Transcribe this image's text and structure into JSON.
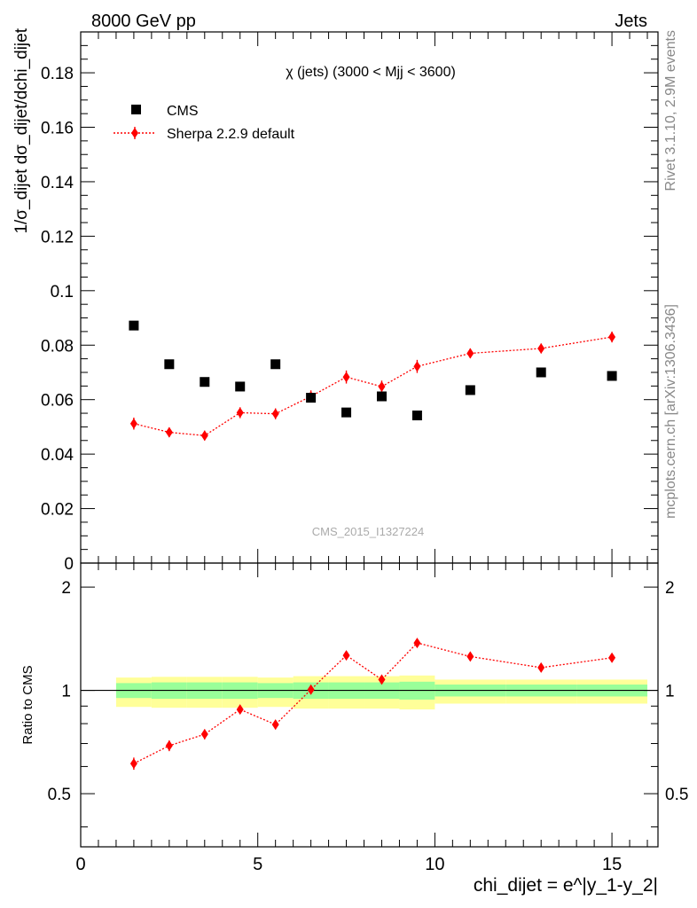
{
  "header": {
    "left": "8000 GeV pp",
    "right": "Jets"
  },
  "side_text": {
    "version": "Rivet 3.1.10,  2.9M events",
    "site": "mcplots.cern.ch [arXiv:1306.3436]"
  },
  "colors": {
    "data": "#000000",
    "mc": "#ff0000",
    "band_inner": "#99ff99",
    "band_outer": "#ffff99"
  },
  "chart_data": [
    {
      "type": "scatter",
      "title": "χ (jets) (3000 < Mjj < 3600)",
      "watermark": "CMS_2015_I1327224",
      "ylabel": "1/σ_dijet dσ_dijet/dchi_dijet",
      "xlim": [
        0,
        16.3
      ],
      "ylim": [
        0,
        0.195
      ],
      "yticks": [
        "0",
        "0.02",
        "0.04",
        "0.06",
        "0.08",
        "0.1",
        "0.12",
        "0.14",
        "0.16",
        "0.18"
      ],
      "legend_position": "top-left",
      "series": [
        {
          "name": "CMS",
          "marker": "square",
          "x": [
            1.5,
            2.5,
            3.5,
            4.5,
            5.5,
            6.5,
            7.5,
            8.5,
            9.5,
            11,
            13,
            15
          ],
          "y": [
            0.0872,
            0.073,
            0.0665,
            0.0648,
            0.073,
            0.0607,
            0.0553,
            0.0612,
            0.0542,
            0.0635,
            0.07,
            0.0687
          ]
        },
        {
          "name": "Sherpa 2.2.9 default",
          "marker": "diamond",
          "line": "dotted",
          "x": [
            1.5,
            2.5,
            3.5,
            4.5,
            5.5,
            6.5,
            7.5,
            8.5,
            9.5,
            11,
            13,
            15
          ],
          "y": [
            0.0512,
            0.048,
            0.0468,
            0.0552,
            0.0548,
            0.0612,
            0.0683,
            0.0648,
            0.0722,
            0.077,
            0.0788,
            0.083
          ],
          "yerr": [
            0.0022,
            0.0018,
            0.0018,
            0.002,
            0.002,
            0.0022,
            0.0024,
            0.0022,
            0.0024,
            0.0018,
            0.0018,
            0.002
          ]
        }
      ]
    },
    {
      "type": "scatter",
      "ylabel": "Ratio to CMS",
      "xlabel": "chi_dijet = e^|y_1-y_2|",
      "xlim": [
        0,
        16.3
      ],
      "ylim": [
        0.35,
        2.35
      ],
      "xticks": [
        "0",
        "5",
        "10",
        "15"
      ],
      "yticks": [
        "0.5",
        "1",
        "2"
      ],
      "reference_line": 1,
      "bands": [
        {
          "x": [
            1,
            2
          ],
          "inner": [
            0.95,
            1.05
          ],
          "outer": [
            0.895,
            1.09
          ]
        },
        {
          "x": [
            2,
            3
          ],
          "inner": [
            0.945,
            1.055
          ],
          "outer": [
            0.89,
            1.095
          ]
        },
        {
          "x": [
            3,
            4
          ],
          "inner": [
            0.945,
            1.055
          ],
          "outer": [
            0.89,
            1.095
          ]
        },
        {
          "x": [
            4,
            5
          ],
          "inner": [
            0.945,
            1.055
          ],
          "outer": [
            0.89,
            1.095
          ]
        },
        {
          "x": [
            5,
            6
          ],
          "inner": [
            0.95,
            1.05
          ],
          "outer": [
            0.895,
            1.09
          ]
        },
        {
          "x": [
            6,
            7
          ],
          "inner": [
            0.945,
            1.055
          ],
          "outer": [
            0.885,
            1.1
          ]
        },
        {
          "x": [
            7,
            8
          ],
          "inner": [
            0.945,
            1.055
          ],
          "outer": [
            0.885,
            1.1
          ]
        },
        {
          "x": [
            8,
            9
          ],
          "inner": [
            0.945,
            1.055
          ],
          "outer": [
            0.885,
            1.1
          ]
        },
        {
          "x": [
            9,
            10
          ],
          "inner": [
            0.94,
            1.06
          ],
          "outer": [
            0.88,
            1.105
          ]
        },
        {
          "x": [
            10,
            12
          ],
          "inner": [
            0.96,
            1.04
          ],
          "outer": [
            0.915,
            1.075
          ]
        },
        {
          "x": [
            12,
            14
          ],
          "inner": [
            0.96,
            1.04
          ],
          "outer": [
            0.915,
            1.075
          ]
        },
        {
          "x": [
            14,
            16
          ],
          "inner": [
            0.96,
            1.04
          ],
          "outer": [
            0.915,
            1.075
          ]
        }
      ],
      "series": [
        {
          "name": "Sherpa 2.2.9 default",
          "marker": "diamond",
          "line": "dotted",
          "x": [
            1.5,
            2.5,
            3.5,
            4.5,
            5.5,
            6.5,
            7.5,
            8.5,
            9.5,
            11,
            13,
            15
          ],
          "y": [
            0.612,
            0.69,
            0.745,
            0.88,
            0.795,
            1.005,
            1.265,
            1.075,
            1.375,
            1.255,
            1.165,
            1.245
          ],
          "yerr": [
            0.025,
            0.025,
            0.025,
            0.025,
            0.025,
            0.025,
            0.03,
            0.025,
            0.03,
            0.02,
            0.02,
            0.02
          ]
        }
      ]
    }
  ]
}
